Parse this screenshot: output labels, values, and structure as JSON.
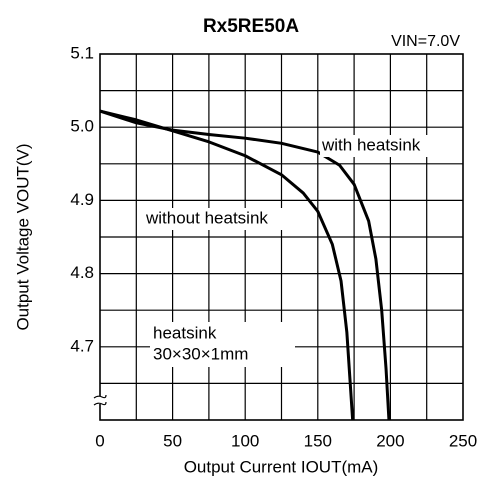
{
  "chart_data": {
    "type": "line",
    "title": "Rx5RE50A",
    "condition": "VIN=7.0V",
    "x_label": "Output Current IOUT(mA)",
    "y_label": "Output Voltage VOUT(V)",
    "annotation": [
      "heatsink",
      "30×30×1mm"
    ],
    "xlim": [
      0,
      250
    ],
    "ylim": [
      4.6,
      5.1
    ],
    "xticks": [
      0,
      50,
      100,
      150,
      200,
      250
    ],
    "yticks": [
      {
        "value": 4.7,
        "label": "4.7"
      },
      {
        "value": 4.8,
        "label": "4.8"
      },
      {
        "value": 4.9,
        "label": "4.9"
      },
      {
        "value": 5.0,
        "label": "5.0"
      },
      {
        "value": 5.1,
        "label": "5.1"
      }
    ],
    "xgrid": [
      25,
      50,
      75,
      100,
      125,
      150,
      175,
      200,
      225
    ],
    "ygrid": [
      4.65,
      4.7,
      4.75,
      4.8,
      4.85,
      4.9,
      4.95,
      5.0,
      5.05
    ],
    "grid": true,
    "series": [
      {
        "name": "with heatsink",
        "color": "#000000",
        "x": [
          0,
          25,
          50,
          75,
          100,
          125,
          150,
          165,
          175,
          185,
          190,
          194,
          197,
          199
        ],
        "values": [
          5.022,
          5.006,
          4.996,
          4.99,
          4.985,
          4.978,
          4.966,
          4.948,
          4.922,
          4.872,
          4.82,
          4.75,
          4.67,
          4.6
        ]
      },
      {
        "name": "without heatsink",
        "color": "#000000",
        "x": [
          0,
          25,
          50,
          75,
          100,
          125,
          140,
          150,
          160,
          166,
          170,
          172,
          174
        ],
        "values": [
          5.022,
          5.01,
          4.995,
          4.98,
          4.961,
          4.935,
          4.91,
          4.885,
          4.84,
          4.79,
          4.72,
          4.66,
          4.6
        ]
      }
    ]
  }
}
